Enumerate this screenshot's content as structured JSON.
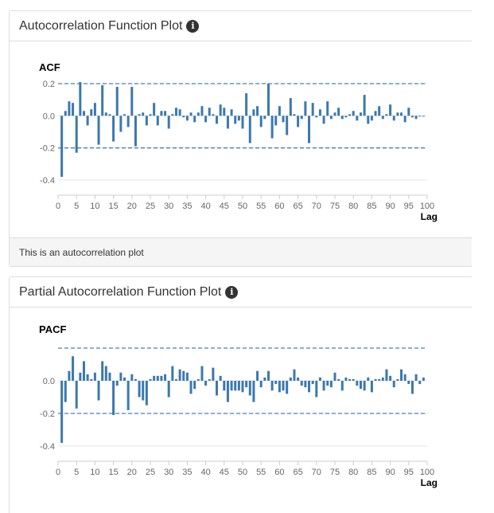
{
  "panels": [
    {
      "header": "Autocorrelation Function Plot",
      "info_icon": "info-circle-icon",
      "footer": "This is an autocorrelation plot"
    },
    {
      "header": "Partial Autocorrelation Function Plot",
      "info_icon": "info-circle-icon"
    }
  ],
  "colors": {
    "bar": "#3b78b0",
    "ci_line": "#4a7fb8",
    "grid": "#e6e6e6"
  },
  "chart_data": [
    {
      "type": "bar",
      "title": "ACF",
      "xlabel": "Lag",
      "ylabel": "",
      "xlim": [
        0,
        100
      ],
      "ylim": [
        -0.4,
        0.2
      ],
      "xticks": [
        0,
        5,
        10,
        15,
        20,
        25,
        30,
        35,
        40,
        45,
        50,
        55,
        60,
        65,
        70,
        75,
        80,
        85,
        90,
        95,
        100
      ],
      "yticks": [
        0.2,
        0.0,
        -0.2,
        -0.4
      ],
      "ytick_labels": [
        "0.2",
        "0.0",
        "-0.2",
        "-0.4"
      ],
      "confidence_band": [
        -0.2,
        0.2
      ],
      "x": [
        1,
        2,
        3,
        4,
        5,
        6,
        7,
        8,
        9,
        10,
        11,
        12,
        13,
        14,
        15,
        16,
        17,
        18,
        19,
        20,
        21,
        22,
        23,
        24,
        25,
        26,
        27,
        28,
        29,
        30,
        31,
        32,
        33,
        34,
        35,
        36,
        37,
        38,
        39,
        40,
        41,
        42,
        43,
        44,
        45,
        46,
        47,
        48,
        49,
        50,
        51,
        52,
        53,
        54,
        55,
        56,
        57,
        58,
        59,
        60,
        61,
        62,
        63,
        64,
        65,
        66,
        67,
        68,
        69,
        70,
        71,
        72,
        73,
        74,
        75,
        76,
        77,
        78,
        79,
        80,
        81,
        82,
        83,
        84,
        85,
        86,
        87,
        88,
        89,
        90,
        91,
        92,
        93,
        94,
        95,
        96,
        97,
        98,
        99
      ],
      "values": [
        -0.38,
        0.03,
        0.09,
        0.08,
        -0.23,
        0.21,
        0.03,
        -0.06,
        0.04,
        0.08,
        -0.18,
        0.19,
        0.02,
        0.01,
        -0.16,
        0.18,
        -0.1,
        0.01,
        -0.07,
        0.18,
        -0.19,
        0.01,
        0.02,
        -0.06,
        0.01,
        0.08,
        -0.06,
        0.03,
        0.03,
        -0.08,
        0.01,
        0.05,
        0.04,
        -0.01,
        -0.03,
        0.02,
        -0.04,
        0.02,
        0.06,
        -0.04,
        0.05,
        0.01,
        -0.05,
        0.07,
        0.05,
        -0.08,
        0.04,
        -0.05,
        -0.03,
        -0.08,
        0.14,
        -0.17,
        0.04,
        0.06,
        -0.07,
        -0.02,
        0.2,
        -0.14,
        -0.06,
        0.06,
        -0.04,
        -0.12,
        0.11,
        0.01,
        -0.07,
        -0.02,
        0.09,
        -0.17,
        0.08,
        -0.01,
        0.04,
        -0.05,
        0.09,
        -0.02,
        0.02,
        0.05,
        -0.02,
        -0.01,
        0.01,
        0.03,
        -0.03,
        0.02,
        0.13,
        -0.05,
        -0.03,
        0.03,
        0.06,
        -0.02,
        0.01,
        0.07,
        -0.03,
        0.02,
        0.02,
        -0.04,
        0.05,
        -0.01,
        -0.02,
        0.0,
        0.0
      ]
    },
    {
      "type": "bar",
      "title": "PACF",
      "xlabel": "Lag",
      "ylabel": "",
      "xlim": [
        0,
        100
      ],
      "ylim": [
        -0.4,
        0.2
      ],
      "xticks": [
        0,
        5,
        10,
        15,
        20,
        25,
        30,
        35,
        40,
        45,
        50,
        55,
        60,
        65,
        70,
        75,
        80,
        85,
        90,
        95,
        100
      ],
      "yticks": [
        0.0,
        -0.2,
        -0.4
      ],
      "ytick_labels": [
        "0.0",
        "-0.2",
        "-0.4"
      ],
      "confidence_band": [
        -0.2,
        0.2
      ],
      "x": [
        1,
        2,
        3,
        4,
        5,
        6,
        7,
        8,
        9,
        10,
        11,
        12,
        13,
        14,
        15,
        16,
        17,
        18,
        19,
        20,
        21,
        22,
        23,
        24,
        25,
        26,
        27,
        28,
        29,
        30,
        31,
        32,
        33,
        34,
        35,
        36,
        37,
        38,
        39,
        40,
        41,
        42,
        43,
        44,
        45,
        46,
        47,
        48,
        49,
        50,
        51,
        52,
        53,
        54,
        55,
        56,
        57,
        58,
        59,
        60,
        61,
        62,
        63,
        64,
        65,
        66,
        67,
        68,
        69,
        70,
        71,
        72,
        73,
        74,
        75,
        76,
        77,
        78,
        79,
        80,
        81,
        82,
        83,
        84,
        85,
        86,
        87,
        88,
        89,
        90,
        91,
        92,
        93,
        94,
        95,
        96,
        97,
        98,
        99
      ],
      "values": [
        -0.38,
        -0.13,
        0.06,
        0.15,
        -0.17,
        0.05,
        0.12,
        0.04,
        0.01,
        0.05,
        -0.12,
        0.12,
        0.09,
        0.05,
        -0.21,
        -0.03,
        0.05,
        0.02,
        -0.18,
        0.04,
        0.01,
        -0.1,
        -0.12,
        -0.15,
        0.01,
        0.03,
        0.03,
        0.03,
        0.04,
        -0.1,
        0.09,
        0.01,
        0.07,
        0.06,
        0.05,
        -0.08,
        -0.05,
        0.01,
        0.09,
        -0.03,
        0.01,
        0.08,
        -0.09,
        0.03,
        -0.06,
        -0.13,
        -0.06,
        -0.06,
        -0.06,
        -0.07,
        -0.04,
        -0.09,
        -0.13,
        0.06,
        -0.04,
        0.02,
        0.06,
        -0.06,
        -0.02,
        -0.07,
        -0.06,
        -0.08,
        0.02,
        0.07,
        0.02,
        -0.03,
        -0.04,
        -0.07,
        -0.02,
        -0.1,
        0.02,
        -0.06,
        -0.03,
        -0.04,
        0.05,
        0.01,
        -0.06,
        0.02,
        0.01,
        0.01,
        -0.03,
        -0.05,
        -0.06,
        0.02,
        -0.07,
        0.01,
        0.01,
        0.02,
        0.07,
        0.03,
        -0.04,
        0.01,
        0.07,
        0.04,
        -0.02,
        -0.08,
        0.04,
        -0.02,
        0.02
      ]
    }
  ]
}
